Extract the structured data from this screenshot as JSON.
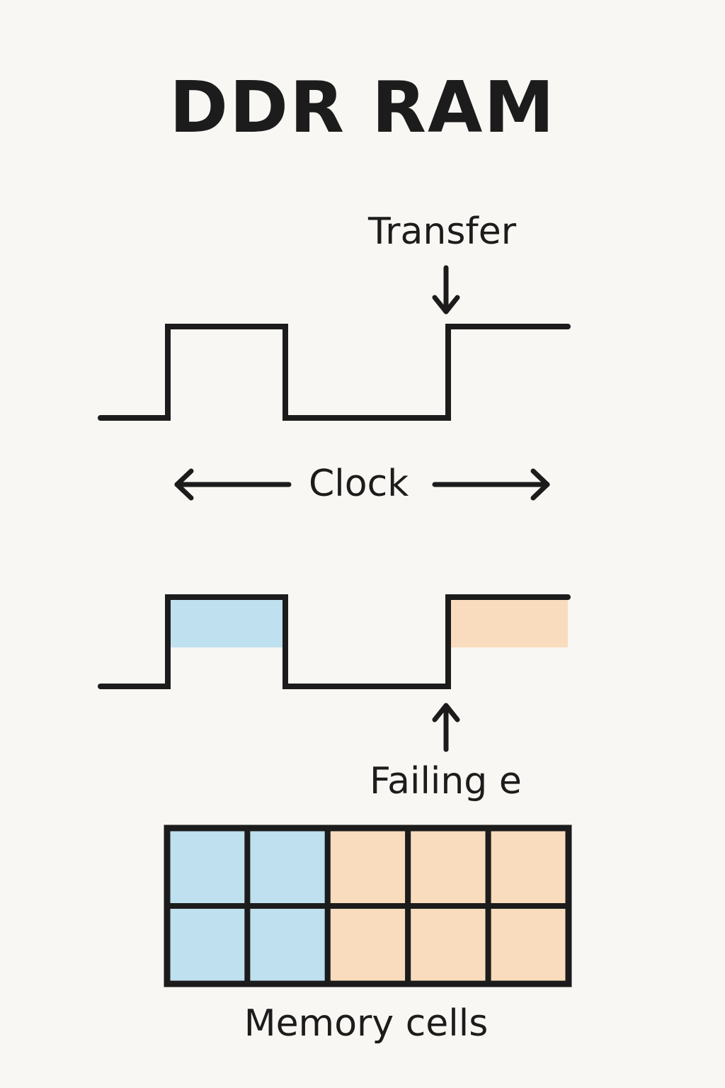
{
  "title": "DDR RAM",
  "labels": {
    "transfer": "Transfer",
    "clock": "Clock",
    "falling_edge": "Failing e",
    "memory_cells": "Memory cells"
  },
  "colors": {
    "background": "#f9f7f3",
    "stroke": "#1c1c1c",
    "rising_fill": "#bfe0ee",
    "falling_fill": "#f8dcbd"
  },
  "memory_grid": {
    "rows": 2,
    "columns": 5,
    "cells": [
      [
        "blue",
        "blue",
        "orange",
        "orange",
        "orange"
      ],
      [
        "blue",
        "blue",
        "orange",
        "orange",
        "orange"
      ]
    ]
  }
}
